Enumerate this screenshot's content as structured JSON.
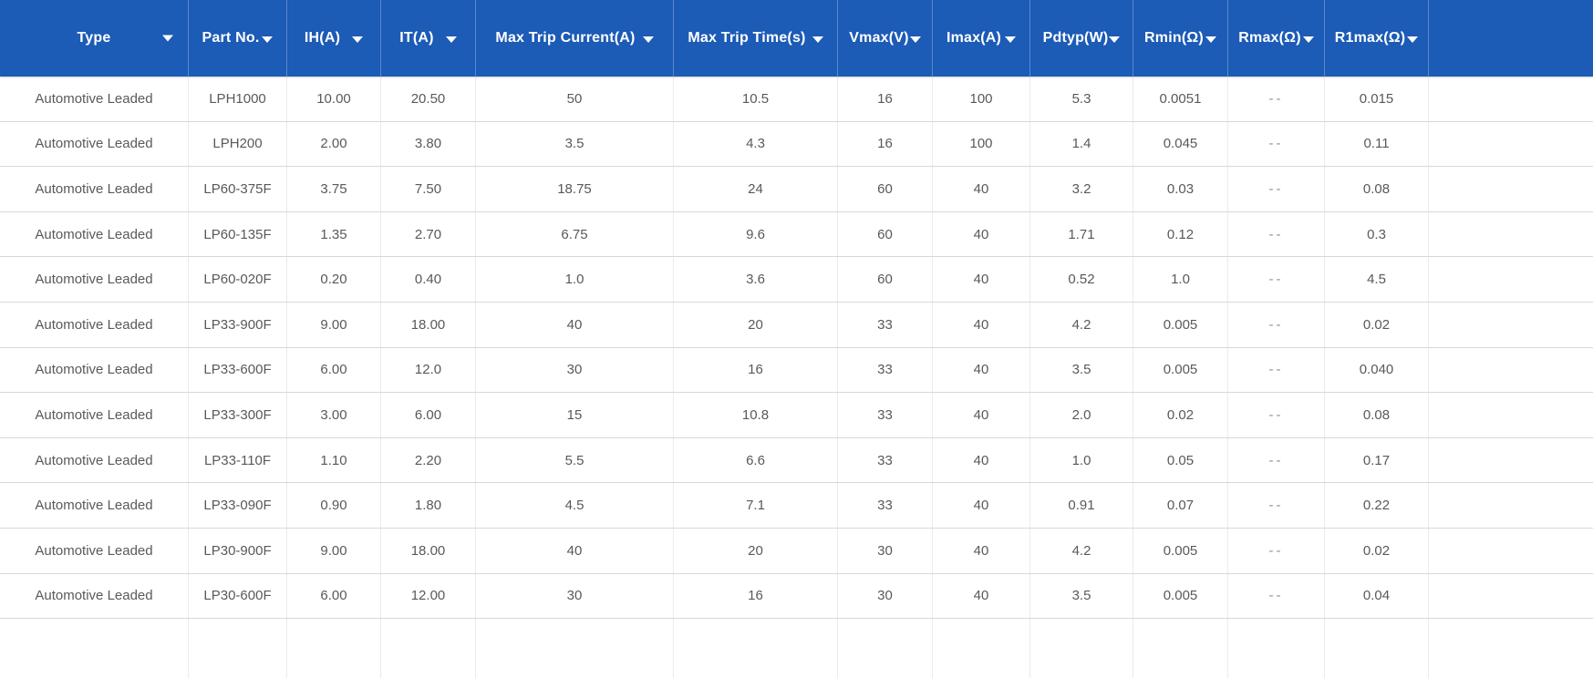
{
  "table": {
    "columns": [
      {
        "label": "Type",
        "name": "type"
      },
      {
        "label": "Part No.",
        "name": "part-no"
      },
      {
        "label": "IH(A)",
        "name": "ih-a"
      },
      {
        "label": "IT(A)",
        "name": "it-a"
      },
      {
        "label": "Max Trip Current(A)",
        "name": "max-trip-current-a"
      },
      {
        "label": "Max Trip Time(s)",
        "name": "max-trip-time-s"
      },
      {
        "label": "Vmax(V)",
        "name": "vmax-v"
      },
      {
        "label": "Imax(A)",
        "name": "imax-a"
      },
      {
        "label": "Pdtyp(W)",
        "name": "pdtyp-w"
      },
      {
        "label": "Rmin(Ω)",
        "name": "rmin-ohm"
      },
      {
        "label": "Rmax(Ω)",
        "name": "rmax-ohm"
      },
      {
        "label": "R1max(Ω)",
        "name": "r1max-ohm"
      }
    ],
    "rows": [
      [
        "Automotive Leaded",
        "LPH1000",
        "10.00",
        "20.50",
        "50",
        "10.5",
        "16",
        "100",
        "5.3",
        "0.0051",
        "--",
        "0.015"
      ],
      [
        "Automotive Leaded",
        "LPH200",
        "2.00",
        "3.80",
        "3.5",
        "4.3",
        "16",
        "100",
        "1.4",
        "0.045",
        "--",
        "0.11"
      ],
      [
        "Automotive Leaded",
        "LP60-375F",
        "3.75",
        "7.50",
        "18.75",
        "24",
        "60",
        "40",
        "3.2",
        "0.03",
        "--",
        "0.08"
      ],
      [
        "Automotive Leaded",
        "LP60-135F",
        "1.35",
        "2.70",
        "6.75",
        "9.6",
        "60",
        "40",
        "1.71",
        "0.12",
        "--",
        "0.3"
      ],
      [
        "Automotive Leaded",
        "LP60-020F",
        "0.20",
        "0.40",
        "1.0",
        "3.6",
        "60",
        "40",
        "0.52",
        "1.0",
        "--",
        "4.5"
      ],
      [
        "Automotive Leaded",
        "LP33-900F",
        "9.00",
        "18.00",
        "40",
        "20",
        "33",
        "40",
        "4.2",
        "0.005",
        "--",
        "0.02"
      ],
      [
        "Automotive Leaded",
        "LP33-600F",
        "6.00",
        "12.0",
        "30",
        "16",
        "33",
        "40",
        "3.5",
        "0.005",
        "--",
        "0.040"
      ],
      [
        "Automotive Leaded",
        "LP33-300F",
        "3.00",
        "6.00",
        "15",
        "10.8",
        "33",
        "40",
        "2.0",
        "0.02",
        "--",
        "0.08"
      ],
      [
        "Automotive Leaded",
        "LP33-110F",
        "1.10",
        "2.20",
        "5.5",
        "6.6",
        "33",
        "40",
        "1.0",
        "0.05",
        "--",
        "0.17"
      ],
      [
        "Automotive Leaded",
        "LP33-090F",
        "0.90",
        "1.80",
        "4.5",
        "7.1",
        "33",
        "40",
        "0.91",
        "0.07",
        "--",
        "0.22"
      ],
      [
        "Automotive Leaded",
        "LP30-900F",
        "9.00",
        "18.00",
        "40",
        "20",
        "30",
        "40",
        "4.2",
        "0.005",
        "--",
        "0.02"
      ],
      [
        "Automotive Leaded",
        "LP30-600F",
        "6.00",
        "12.00",
        "30",
        "16",
        "30",
        "40",
        "3.5",
        "0.005",
        "--",
        "0.04"
      ]
    ],
    "empty_value": "--"
  },
  "colors": {
    "header_bg": "#1c5bb6",
    "header_text": "#ffffff",
    "cell_text": "#595959",
    "row_bg": "#ffffff",
    "row_border": "#d8d8d8",
    "column_border": "#ebebeb",
    "scrollbar": "#aeb9c4"
  },
  "icons": {
    "sort_dropdown": "filled-down-triangle"
  }
}
